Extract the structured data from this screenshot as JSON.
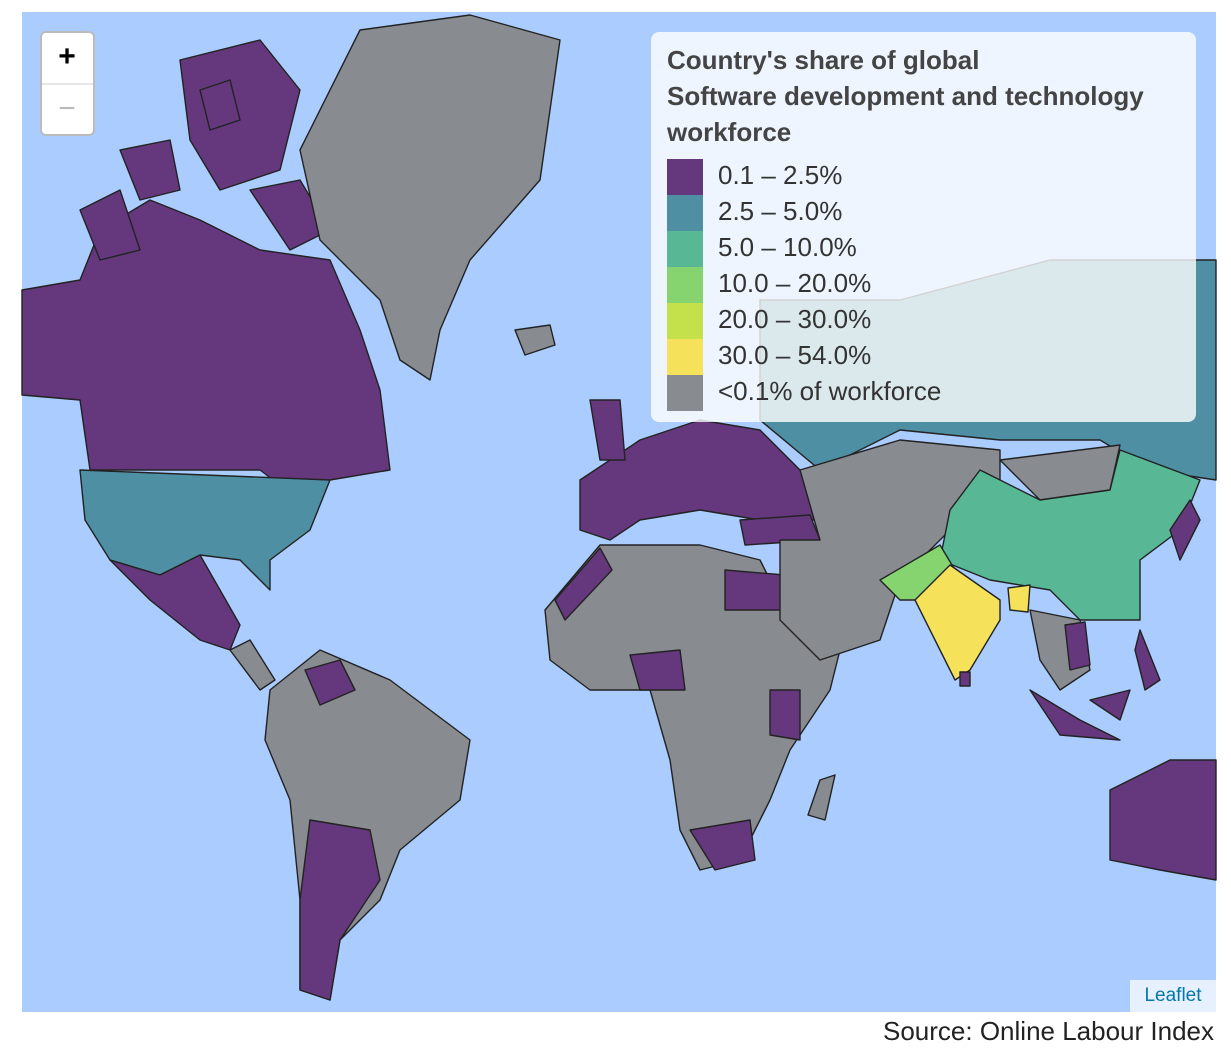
{
  "zoom": {
    "in": "+",
    "out": "−"
  },
  "legend": {
    "title": [
      "Country's share of global",
      "Software development and technology",
      "workforce"
    ],
    "items": [
      {
        "label": "0.1 – 2.5%",
        "color": "#65387d"
      },
      {
        "label": "2.5 – 5.0%",
        "color": "#4e8fa3"
      },
      {
        "label": "5.0 – 10.0%",
        "color": "#58b896"
      },
      {
        "label": "10.0 – 20.0%",
        "color": "#86d46f"
      },
      {
        "label": "20.0 – 30.0%",
        "color": "#c4e04a"
      },
      {
        "label": "30.0 – 54.0%",
        "color": "#f5e25a"
      },
      {
        "label": "<0.1% of workforce",
        "color": "#888b90"
      }
    ]
  },
  "attribution": "Leaflet",
  "source": "Source: Online Labour Index"
}
